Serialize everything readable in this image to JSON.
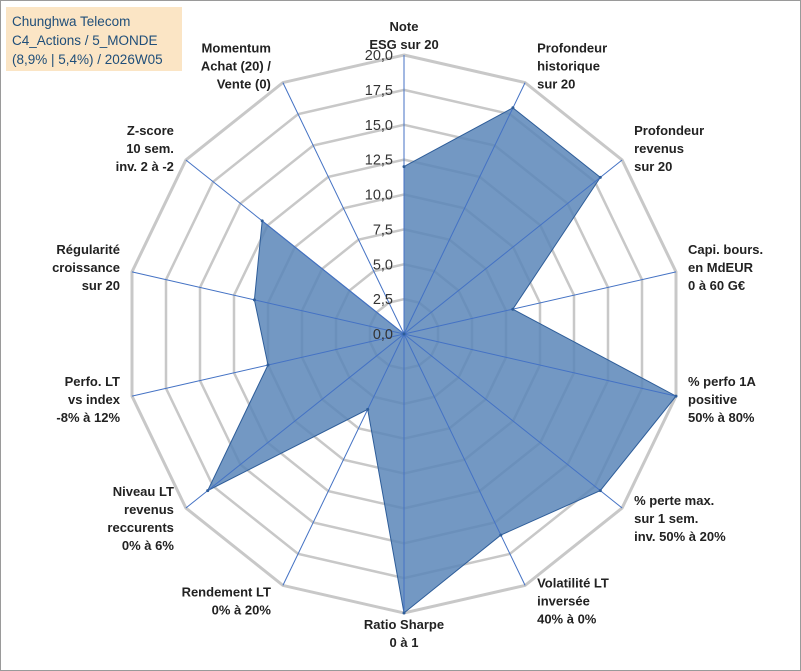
{
  "title": {
    "company": "Chunghwa Telecom",
    "portfolio": "C4_Actions / 5_MONDE",
    "stats": "(8,9% | 5,4%) / 2026W05"
  },
  "chart_data": {
    "type": "radar",
    "range": [
      0,
      20
    ],
    "ticks": [
      "0,0",
      "2,5",
      "5,0",
      "7,5",
      "10,0",
      "12,5",
      "15,0",
      "17,5",
      "20,0"
    ],
    "axes": [
      {
        "lines": [
          "Note",
          "ESG sur 20"
        ],
        "value": 12
      },
      {
        "lines": [
          "Profondeur",
          "historique",
          "sur 20"
        ],
        "value": 18
      },
      {
        "lines": [
          "Profondeur",
          "revenus",
          "sur 20"
        ],
        "value": 18
      },
      {
        "lines": [
          "Capi. bours.",
          "en MdEUR",
          "0 à 60 G€"
        ],
        "value": 8
      },
      {
        "lines": [
          "% perfo 1A",
          "positive",
          "50% à 80%"
        ],
        "value": 20
      },
      {
        "lines": [
          "% perte max.",
          "sur 1 sem.",
          "inv. 50% à 20%"
        ],
        "value": 18
      },
      {
        "lines": [
          "Volatilité LT",
          "inversée",
          "40% à 0%"
        ],
        "value": 16
      },
      {
        "lines": [
          "Ratio Sharpe",
          "0 à 1"
        ],
        "value": 20
      },
      {
        "lines": [
          "Rendement LT",
          "0% à 20%"
        ],
        "value": 6
      },
      {
        "lines": [
          "Niveau LT",
          "revenus",
          "reccurents",
          "0% à 6%"
        ],
        "value": 18
      },
      {
        "lines": [
          "Perfo. LT",
          "vs index",
          "-8% à 12%"
        ],
        "value": 10
      },
      {
        "lines": [
          "Régularité",
          "croissance",
          "sur 20"
        ],
        "value": 11
      },
      {
        "lines": [
          "Z-score",
          "10 sem.",
          "inv. 2 à -2"
        ],
        "value": 13
      },
      {
        "lines": [
          "Momentum",
          "Achat (20) /",
          "Vente (0)"
        ],
        "value": 0
      }
    ],
    "series": [
      {
        "name": "Chunghwa Telecom",
        "fill": "#5b86b8",
        "stroke": "#2e5d99"
      }
    ],
    "grid_color": "#c8c8c8",
    "spoke_color": "#4472c4"
  }
}
